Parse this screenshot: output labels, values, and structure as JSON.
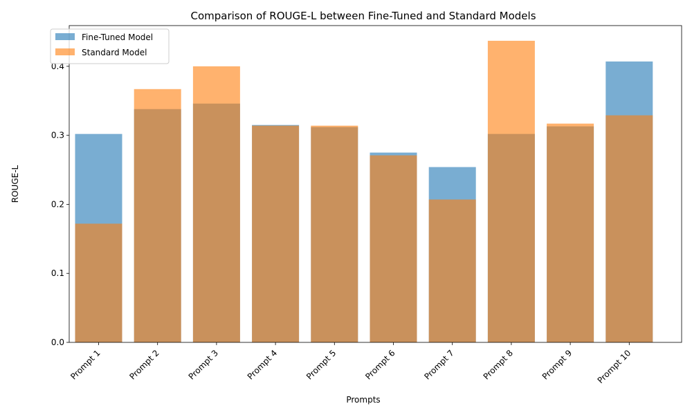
{
  "chart_data": {
    "type": "bar",
    "title": "Comparison of ROUGE-L between Fine-Tuned and Standard Models",
    "xlabel": "Prompts",
    "ylabel": "ROUGE-L",
    "categories": [
      "Prompt 1",
      "Prompt 2",
      "Prompt 3",
      "Prompt 4",
      "Prompt 5",
      "Prompt 6",
      "Prompt 7",
      "Prompt 8",
      "Prompt 9",
      "Prompt 10"
    ],
    "series": [
      {
        "name": "Fine-Tuned Model",
        "color": "#1f77b4",
        "opacity": 0.6,
        "values": [
          0.302,
          0.338,
          0.346,
          0.315,
          0.312,
          0.275,
          0.254,
          0.302,
          0.313,
          0.407
        ]
      },
      {
        "name": "Standard Model",
        "color": "#ff7f0e",
        "opacity": 0.6,
        "values": [
          0.172,
          0.367,
          0.4,
          0.314,
          0.314,
          0.271,
          0.207,
          0.437,
          0.317,
          0.329
        ]
      }
    ],
    "ylim": [
      0,
      0.459
    ],
    "yticks": [
      0.0,
      0.1,
      0.2,
      0.3,
      0.4
    ],
    "ytick_labels": [
      "0.0",
      "0.1",
      "0.2",
      "0.3",
      "0.4"
    ],
    "bars_overlaid": true,
    "legend_position": "top-left",
    "grid": false
  }
}
